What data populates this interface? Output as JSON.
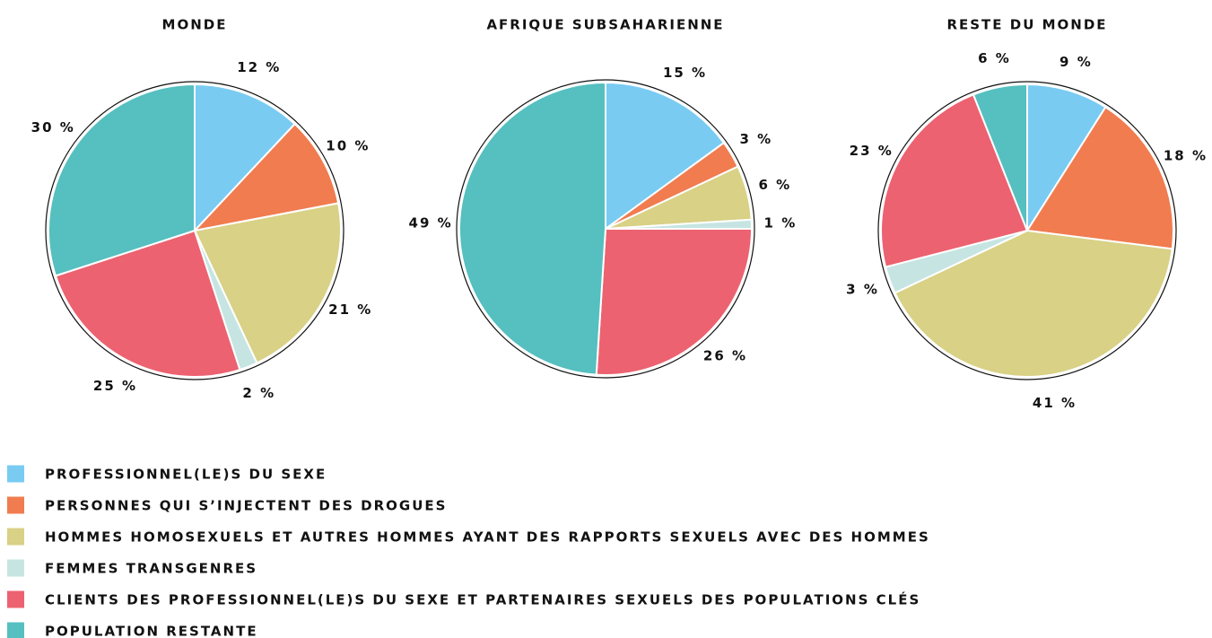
{
  "chart_data": [
    {
      "type": "pie",
      "title": "MONDE",
      "values": [
        12,
        10,
        21,
        2,
        25,
        30
      ],
      "value_labels": [
        "12 %",
        "10 %",
        "21 %",
        "2 %",
        "25 %",
        "30 %"
      ]
    },
    {
      "type": "pie",
      "title": "AFRIQUE SUBSAHARIENNE",
      "values": [
        15,
        3,
        6,
        1,
        26,
        49
      ],
      "value_labels": [
        "15 %",
        "3 %",
        "6 %",
        "1 %",
        "26 %",
        "49 %"
      ]
    },
    {
      "type": "pie",
      "title": "RESTE DU MONDE",
      "values": [
        9,
        18,
        41,
        3,
        23,
        6
      ],
      "value_labels": [
        "9 %",
        "18 %",
        "41 %",
        "3 %",
        "23 %",
        "6 %"
      ]
    }
  ],
  "legend": {
    "categories": [
      "PROFESSIONNEL(LE)S DU SEXE",
      "PERSONNES QUI S’INJECTENT DES DROGUES",
      "HOMMES HOMOSEXUELS ET AUTRES HOMMES AYANT DES RAPPORTS SEXUELS AVEC DES HOMMES",
      "FEMMES TRANSGENRES",
      "CLIENTS DES PROFESSIONNEL(LE)S DU SEXE ET PARTENAIRES SEXUELS DES POPULATIONS CLÉS",
      "POPULATION RESTANTE"
    ],
    "colors": [
      "#79cbf2",
      "#f07c50",
      "#d8d186",
      "#c6e5e2",
      "#ec6270",
      "#56bfc0"
    ]
  }
}
